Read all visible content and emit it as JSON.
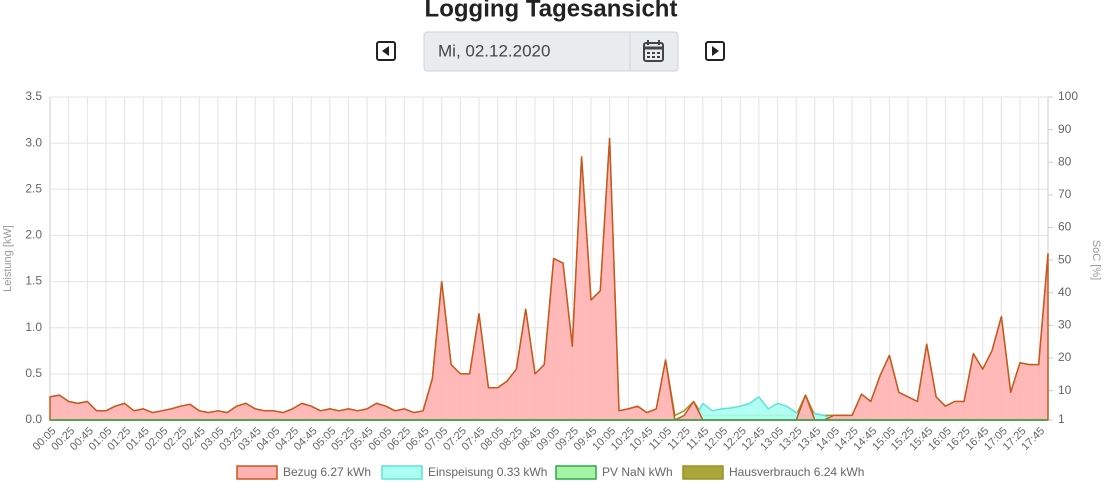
{
  "header": {
    "title": "Logging Tagesansicht",
    "date": "Mi, 02.12.2020"
  },
  "chart_data": {
    "type": "line",
    "ylabel": "Leistung [kW]",
    "y2label": "SoC [%]",
    "ylim": [
      0,
      3.5
    ],
    "yticks": [
      {
        "value": 0,
        "label": "0.0"
      },
      0.5,
      {
        "value": 1,
        "label": "1.0"
      },
      1.5,
      {
        "value": 2,
        "label": "2.0"
      },
      2.5,
      {
        "value": 3,
        "label": "3.0"
      },
      3.5
    ],
    "y2lim": [
      1,
      100
    ],
    "y2ticks": [
      1,
      10,
      20,
      30,
      40,
      50,
      60,
      70,
      80,
      90,
      100
    ],
    "grid": true,
    "legend": "bottom",
    "categories": [
      "00:05",
      null,
      "00:25",
      null,
      "00:45",
      null,
      "01:05",
      null,
      "01:25",
      null,
      "01:45",
      null,
      "02:05",
      null,
      "02:25",
      null,
      "02:45",
      null,
      "03:05",
      null,
      "03:25",
      null,
      "03:45",
      null,
      "04:05",
      null,
      "04:25",
      null,
      "04:45",
      null,
      "05:05",
      null,
      "05:25",
      null,
      "05:45",
      null,
      "06:05",
      null,
      "06:25",
      null,
      "06:45",
      null,
      "07:05",
      null,
      "07:25",
      null,
      "07:45",
      null,
      "08:05",
      null,
      "08:25",
      null,
      "08:45",
      null,
      "09:05",
      null,
      "09:25",
      null,
      "09:45",
      null,
      "10:05",
      null,
      "10:25",
      null,
      "10:45",
      null,
      "11:05",
      null,
      "11:25",
      null,
      "11:45",
      null,
      "12:05",
      null,
      "12:25",
      null,
      "12:45",
      null,
      "13:05",
      null,
      "13:25",
      null,
      "13:45",
      null,
      "14:05",
      null,
      "14:25",
      null,
      "14:45",
      null,
      "15:05",
      null,
      "15:25",
      null,
      "15:45",
      null,
      "16:05",
      null,
      "16:25",
      null,
      "16:45",
      null,
      "17:05",
      null,
      "17:25",
      null,
      "17:45",
      null
    ],
    "series": [
      {
        "name": "Bezug 6.27 kWh",
        "color": "#c8581f",
        "fill": "#ffb1b1",
        "area": true,
        "values": [
          0.25,
          0.27,
          0.2,
          0.18,
          0.2,
          0.1,
          0.1,
          0.15,
          0.18,
          0.1,
          0.12,
          0.08,
          0.1,
          0.12,
          0.15,
          0.17,
          0.1,
          0.08,
          0.1,
          0.08,
          0.15,
          0.18,
          0.12,
          0.1,
          0.1,
          0.08,
          0.12,
          0.18,
          0.15,
          0.1,
          0.12,
          0.1,
          0.12,
          0.1,
          0.12,
          0.18,
          0.15,
          0.1,
          0.12,
          0.08,
          0.1,
          0.45,
          1.5,
          0.6,
          0.5,
          0.5,
          1.15,
          0.35,
          0.35,
          0.42,
          0.55,
          1.2,
          0.5,
          0.6,
          1.75,
          1.7,
          0.8,
          2.85,
          1.3,
          1.4,
          3.05,
          0.1,
          0.12,
          0.15,
          0.08,
          0.12,
          0.65,
          0,
          0.05,
          0.2,
          0,
          0,
          0,
          0,
          0,
          0,
          0,
          0,
          0,
          0,
          0,
          0.27,
          0,
          0,
          0.05,
          0.05,
          0.05,
          0.28,
          0.2,
          0.48,
          0.7,
          0.3,
          0.25,
          0.2,
          0.82,
          0.25,
          0.15,
          0.2,
          0.2,
          0.72,
          0.55,
          0.75,
          1.12,
          0.3,
          0.62,
          0.6,
          0.6,
          1.8
        ]
      },
      {
        "name": "Einspeisung 0.33 kWh",
        "color": "#5fe3d3",
        "fill": "#a8fff2",
        "area": true,
        "values": [
          0,
          0,
          0,
          0,
          0,
          0,
          0,
          0,
          0,
          0,
          0,
          0,
          0,
          0,
          0,
          0,
          0,
          0,
          0,
          0,
          0,
          0,
          0,
          0,
          0,
          0,
          0,
          0,
          0,
          0,
          0,
          0,
          0,
          0,
          0,
          0,
          0,
          0,
          0,
          0,
          0,
          0,
          0,
          0,
          0,
          0,
          0,
          0,
          0,
          0,
          0,
          0,
          0,
          0,
          0,
          0,
          0,
          0,
          0,
          0,
          0,
          0,
          0,
          0,
          0,
          0,
          0,
          0,
          0,
          0,
          0.18,
          0.1,
          0.12,
          0.13,
          0.15,
          0.18,
          0.25,
          0.12,
          0.18,
          0.15,
          0.08,
          0.05,
          0.07,
          0.05,
          0,
          0,
          0,
          0,
          0,
          0,
          0,
          0,
          0,
          0,
          0,
          0,
          0,
          0,
          0,
          0,
          0,
          0,
          0,
          0,
          0,
          0,
          0,
          0
        ]
      },
      {
        "name": "PV NaN kWh",
        "color": "#2ea84a",
        "fill": "#a3f5a3",
        "area": false,
        "values": [
          0,
          0,
          0,
          0,
          0,
          0,
          0,
          0,
          0,
          0,
          0,
          0,
          0,
          0,
          0,
          0,
          0,
          0,
          0,
          0,
          0,
          0,
          0,
          0,
          0,
          0,
          0,
          0,
          0,
          0,
          0,
          0,
          0,
          0,
          0,
          0,
          0,
          0,
          0,
          0,
          0,
          0,
          0,
          0,
          0,
          0,
          0,
          0,
          0,
          0,
          0,
          0,
          0,
          0,
          0,
          0,
          0,
          0,
          0,
          0,
          0,
          0,
          0,
          0,
          0,
          0,
          0,
          0,
          0,
          0,
          0,
          0,
          0,
          0,
          0,
          0,
          0,
          0,
          0,
          0,
          0,
          0,
          0,
          0,
          0,
          0,
          0,
          0,
          0,
          0,
          0,
          0,
          0,
          0,
          0,
          0,
          0,
          0,
          0,
          0,
          0,
          0,
          0,
          0,
          0,
          0,
          0,
          0
        ]
      },
      {
        "name": "Hausverbrauch 6.24 kWh",
        "color": "#9a9428",
        "fill": "#aca53a",
        "area": false,
        "values": [
          0.25,
          0.27,
          0.2,
          0.18,
          0.2,
          0.1,
          0.1,
          0.15,
          0.18,
          0.1,
          0.12,
          0.08,
          0.1,
          0.12,
          0.15,
          0.17,
          0.1,
          0.08,
          0.1,
          0.08,
          0.15,
          0.18,
          0.12,
          0.1,
          0.1,
          0.08,
          0.12,
          0.18,
          0.15,
          0.1,
          0.12,
          0.1,
          0.12,
          0.1,
          0.12,
          0.18,
          0.15,
          0.1,
          0.12,
          0.08,
          0.1,
          0.45,
          1.5,
          0.6,
          0.5,
          0.5,
          1.15,
          0.35,
          0.35,
          0.42,
          0.55,
          1.2,
          0.5,
          0.6,
          1.75,
          1.7,
          0.8,
          2.85,
          1.3,
          1.4,
          3.05,
          0.1,
          0.12,
          0.15,
          0.08,
          0.12,
          0.65,
          0.05,
          0.1,
          0.2,
          0.05,
          0.05,
          0.05,
          0.05,
          0.05,
          0.05,
          0.05,
          0.05,
          0.05,
          0.05,
          0.05,
          0.27,
          0.05,
          0.05,
          0.05,
          0.05,
          0.05,
          0.28,
          0.2,
          0.48,
          0.7,
          0.3,
          0.25,
          0.2,
          0.82,
          0.25,
          0.15,
          0.2,
          0.2,
          0.72,
          0.55,
          0.75,
          1.12,
          0.3,
          0.62,
          0.6,
          0.6,
          1.8
        ]
      }
    ]
  }
}
